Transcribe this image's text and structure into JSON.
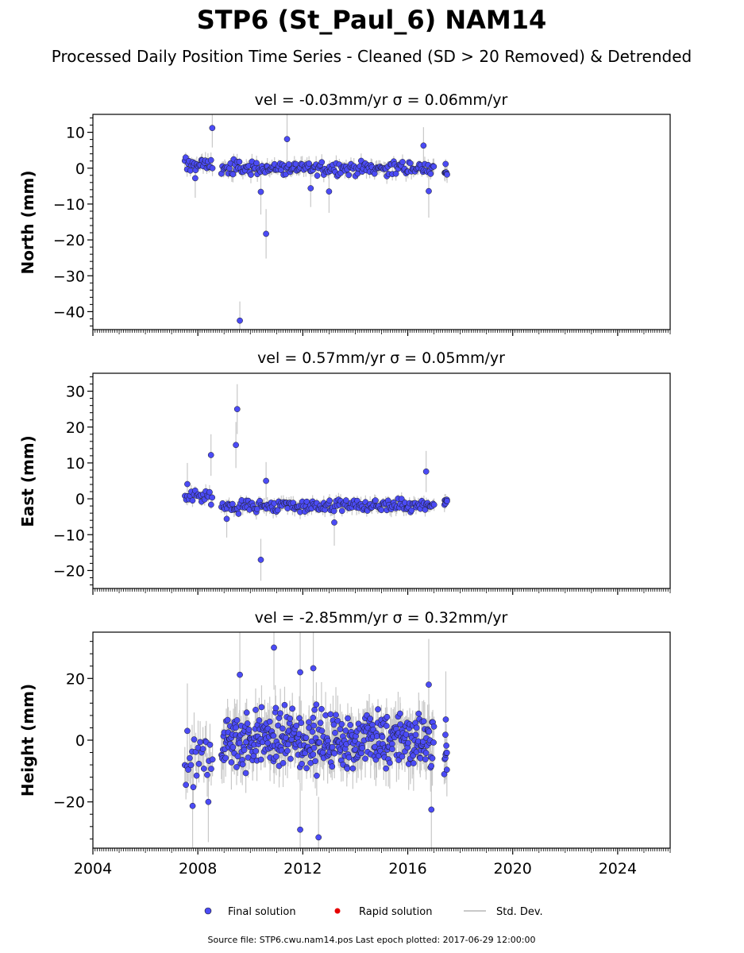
{
  "title": "STP6 (St_Paul_6) NAM14",
  "subtitle": "Processed Daily Position Time Series - Cleaned (SD > 20 Removed) & Detrended",
  "footer": "Source file: STP6.cwu.nam14.pos  Last epoch plotted: 2017-06-29 12:00:00",
  "legend": {
    "final": "Final solution",
    "rapid": "Rapid solution",
    "std": "Std. Dev."
  },
  "colors": {
    "final": "#4b4bf5",
    "rapid": "#e60000",
    "std": "#c8c8c8",
    "marker_edge": "#1a1a1a"
  },
  "chart_data": [
    {
      "type": "scatter",
      "id": "north",
      "title": "vel = -0.03mm/yr   σ = 0.06mm/yr",
      "ylabel": "North (mm)",
      "xlim": [
        2004,
        2026
      ],
      "ylim": [
        -45,
        15
      ],
      "yticks": [
        10,
        0,
        -10,
        -20,
        -30,
        -40
      ],
      "yticklabels": [
        "10",
        "0",
        "−10",
        "−20",
        "−30",
        "−40"
      ],
      "series": [
        {
          "name": "Final solution",
          "band": {
            "spread": 1.4,
            "noise": 1.6
          },
          "segments": [
            {
              "x": [
                2007.5,
                2008.55
              ],
              "y": 1.0,
              "n": 26
            },
            {
              "x": [
                2008.9,
                2017.0
              ],
              "y": 0.0,
              "n": 190
            },
            {
              "x": [
                2017.4,
                2017.5
              ],
              "y": -0.8,
              "n": 7
            }
          ],
          "outliers": [
            {
              "x": 2008.55,
              "y": 11.2
            },
            {
              "x": 2009.6,
              "y": -42.5
            },
            {
              "x": 2010.6,
              "y": -18.3
            },
            {
              "x": 2010.4,
              "y": -6.6
            },
            {
              "x": 2011.4,
              "y": 8.1
            },
            {
              "x": 2013.0,
              "y": -6.5
            },
            {
              "x": 2012.3,
              "y": -5.6
            },
            {
              "x": 2016.8,
              "y": -6.4
            },
            {
              "x": 2016.6,
              "y": 6.3
            },
            {
              "x": 2007.9,
              "y": -2.8
            }
          ]
        }
      ]
    },
    {
      "type": "scatter",
      "id": "east",
      "title": "vel = 0.57mm/yr   σ = 0.05mm/yr",
      "ylabel": "East (mm)",
      "xlim": [
        2004,
        2026
      ],
      "ylim": [
        -25,
        35
      ],
      "yticks": [
        30,
        20,
        10,
        0,
        -10,
        -20
      ],
      "yticklabels": [
        "30",
        "20",
        "10",
        "0",
        "−10",
        "−20"
      ],
      "series": [
        {
          "name": "Final solution",
          "band": {
            "spread": 1.2,
            "noise": 1.5
          },
          "segments": [
            {
              "x": [
                2007.5,
                2008.55
              ],
              "y": 0.5,
              "n": 22
            },
            {
              "x": [
                2008.9,
                2017.0
              ],
              "y": -2.0,
              "n": 190
            },
            {
              "x": [
                2017.4,
                2017.5
              ],
              "y": -1.2,
              "n": 7
            }
          ],
          "outliers": [
            {
              "x": 2008.5,
              "y": 12.2
            },
            {
              "x": 2009.5,
              "y": 25.0
            },
            {
              "x": 2009.45,
              "y": 15.0
            },
            {
              "x": 2010.6,
              "y": 5.0
            },
            {
              "x": 2010.4,
              "y": -17.0
            },
            {
              "x": 2016.7,
              "y": 7.6
            },
            {
              "x": 2007.6,
              "y": 4.1
            },
            {
              "x": 2013.2,
              "y": -6.6
            },
            {
              "x": 2009.1,
              "y": -5.6
            }
          ]
        }
      ]
    },
    {
      "type": "scatter",
      "id": "height",
      "title": "vel = -2.85mm/yr   σ = 0.32mm/yr",
      "ylabel": "Height (mm)",
      "xlim": [
        2004,
        2026
      ],
      "ylim": [
        -35,
        35
      ],
      "yticks": [
        20,
        0,
        -20
      ],
      "yticklabels": [
        "20",
        "0",
        "−20"
      ],
      "xticks": [
        2004,
        2008,
        2012,
        2016,
        2020,
        2024
      ],
      "xticklabels": [
        "2004",
        "2008",
        "2012",
        "2016",
        "2020",
        "2024"
      ],
      "series": [
        {
          "name": "Final solution",
          "band": {
            "spread": 6.5,
            "noise": 6.0
          },
          "segments": [
            {
              "x": [
                2007.5,
                2008.55
              ],
              "y": -7.0,
              "n": 24
            },
            {
              "x": [
                2008.9,
                2017.0
              ],
              "y": 0.0,
              "n": 420
            },
            {
              "x": [
                2017.4,
                2017.5
              ],
              "y": -6.0,
              "n": 9
            }
          ],
          "outliers": [
            {
              "x": 2010.9,
              "y": 30.0
            },
            {
              "x": 2012.4,
              "y": 23.3
            },
            {
              "x": 2011.9,
              "y": 22.0
            },
            {
              "x": 2009.6,
              "y": 21.2
            },
            {
              "x": 2011.9,
              "y": -29.0
            },
            {
              "x": 2012.6,
              "y": -31.5
            },
            {
              "x": 2007.8,
              "y": -21.3
            },
            {
              "x": 2008.4,
              "y": -20.0
            },
            {
              "x": 2016.9,
              "y": -22.5
            },
            {
              "x": 2017.45,
              "y": 6.7
            },
            {
              "x": 2016.8,
              "y": 18.0
            },
            {
              "x": 2007.6,
              "y": 3.0
            }
          ]
        }
      ]
    }
  ]
}
